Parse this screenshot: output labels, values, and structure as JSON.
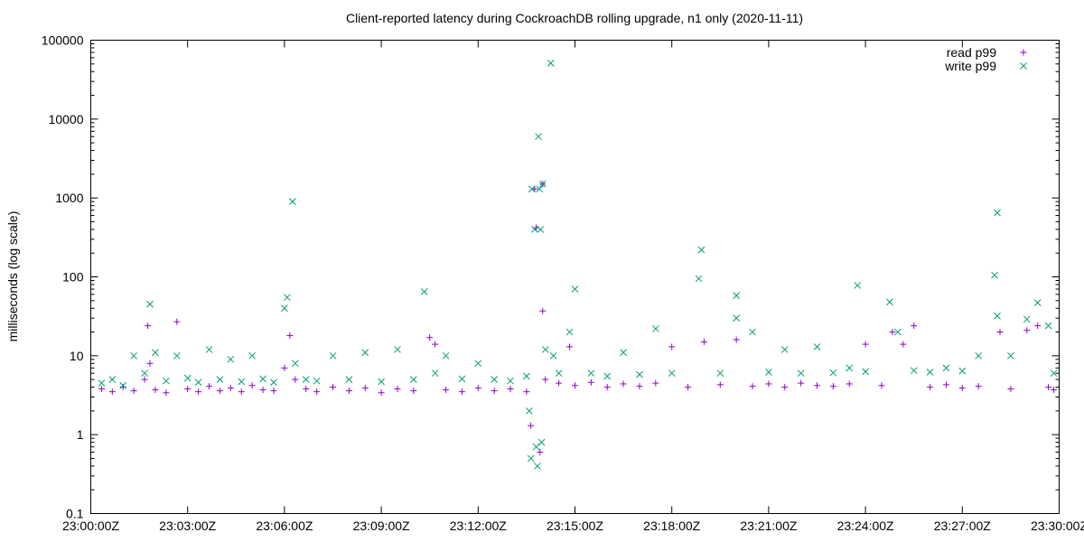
{
  "chart_data": {
    "type": "scatter",
    "title": "Client-reported latency during CockroachDB rolling upgrade, n1 only (2020-11-11)",
    "xlabel": "",
    "ylabel": "milliseconds (log scale)",
    "y_scale": "log",
    "ylim": [
      0.1,
      100000
    ],
    "xlim": [
      "23:00:00Z",
      "23:30:00Z"
    ],
    "x_unit": "time (UTC)",
    "grid": false,
    "legend_position": "top-right",
    "y_ticks": [
      "0.1",
      "1",
      "10",
      "100",
      "1000",
      "10000",
      "100000"
    ],
    "x_ticks": [
      "23:00:00Z",
      "23:03:00Z",
      "23:06:00Z",
      "23:09:00Z",
      "23:12:00Z",
      "23:15:00Z",
      "23:18:00Z",
      "23:21:00Z",
      "23:24:00Z",
      "23:27:00Z",
      "23:30:00Z"
    ],
    "series": [
      {
        "name": "read p99",
        "color": "#9400d3",
        "marker": "plus",
        "points": [
          [
            "23:00:20Z",
            3.8
          ],
          [
            "23:00:40Z",
            3.5
          ],
          [
            "23:01:00Z",
            4.0
          ],
          [
            "23:01:20Z",
            3.6
          ],
          [
            "23:01:40Z",
            5.0
          ],
          [
            "23:01:46Z",
            24
          ],
          [
            "23:01:50Z",
            8.0
          ],
          [
            "23:02:00Z",
            3.7
          ],
          [
            "23:02:20Z",
            3.4
          ],
          [
            "23:02:40Z",
            27
          ],
          [
            "23:03:00Z",
            3.8
          ],
          [
            "23:03:20Z",
            3.5
          ],
          [
            "23:03:40Z",
            4.1
          ],
          [
            "23:04:00Z",
            3.6
          ],
          [
            "23:04:20Z",
            3.9
          ],
          [
            "23:04:40Z",
            3.5
          ],
          [
            "23:05:00Z",
            4.2
          ],
          [
            "23:05:20Z",
            3.7
          ],
          [
            "23:05:40Z",
            3.6
          ],
          [
            "23:06:00Z",
            7.0
          ],
          [
            "23:06:10Z",
            18
          ],
          [
            "23:06:20Z",
            5.0
          ],
          [
            "23:06:40Z",
            3.8
          ],
          [
            "23:07:00Z",
            3.5
          ],
          [
            "23:07:30Z",
            4.0
          ],
          [
            "23:08:00Z",
            3.6
          ],
          [
            "23:08:30Z",
            3.9
          ],
          [
            "23:09:00Z",
            3.4
          ],
          [
            "23:09:30Z",
            3.8
          ],
          [
            "23:10:00Z",
            3.6
          ],
          [
            "23:10:30Z",
            17
          ],
          [
            "23:10:40Z",
            14
          ],
          [
            "23:11:00Z",
            3.7
          ],
          [
            "23:11:30Z",
            3.5
          ],
          [
            "23:12:00Z",
            3.9
          ],
          [
            "23:12:30Z",
            3.6
          ],
          [
            "23:13:00Z",
            3.8
          ],
          [
            "23:13:30Z",
            3.5
          ],
          [
            "23:13:38Z",
            1.3
          ],
          [
            "23:13:45Z",
            1300
          ],
          [
            "23:13:48Z",
            420
          ],
          [
            "23:13:55Z",
            0.6
          ],
          [
            "23:14:00Z",
            1500
          ],
          [
            "23:14:00Z",
            37
          ],
          [
            "23:14:05Z",
            5.0
          ],
          [
            "23:14:30Z",
            4.5
          ],
          [
            "23:14:50Z",
            13
          ],
          [
            "23:15:00Z",
            4.2
          ],
          [
            "23:15:30Z",
            4.6
          ],
          [
            "23:16:00Z",
            4.0
          ],
          [
            "23:16:30Z",
            4.4
          ],
          [
            "23:17:00Z",
            4.1
          ],
          [
            "23:17:30Z",
            4.5
          ],
          [
            "23:18:00Z",
            13
          ],
          [
            "23:18:30Z",
            4.0
          ],
          [
            "23:19:00Z",
            15
          ],
          [
            "23:19:30Z",
            4.3
          ],
          [
            "23:20:00Z",
            16
          ],
          [
            "23:20:30Z",
            4.1
          ],
          [
            "23:21:00Z",
            4.4
          ],
          [
            "23:21:30Z",
            4.0
          ],
          [
            "23:22:00Z",
            4.5
          ],
          [
            "23:22:30Z",
            4.2
          ],
          [
            "23:23:00Z",
            4.1
          ],
          [
            "23:23:30Z",
            4.4
          ],
          [
            "23:24:00Z",
            14
          ],
          [
            "23:24:30Z",
            4.2
          ],
          [
            "23:24:50Z",
            20
          ],
          [
            "23:25:10Z",
            14
          ],
          [
            "23:25:30Z",
            24
          ],
          [
            "23:26:00Z",
            4.0
          ],
          [
            "23:26:30Z",
            4.3
          ],
          [
            "23:27:00Z",
            3.9
          ],
          [
            "23:27:30Z",
            4.1
          ],
          [
            "23:28:10Z",
            20
          ],
          [
            "23:28:30Z",
            3.8
          ],
          [
            "23:29:00Z",
            21
          ],
          [
            "23:29:20Z",
            24
          ],
          [
            "23:29:40Z",
            4.0
          ],
          [
            "23:29:50Z",
            3.7
          ]
        ]
      },
      {
        "name": "write p99",
        "color": "#009e73",
        "marker": "cross",
        "points": [
          [
            "23:00:20Z",
            4.5
          ],
          [
            "23:00:40Z",
            5.0
          ],
          [
            "23:01:00Z",
            4.2
          ],
          [
            "23:01:20Z",
            10
          ],
          [
            "23:01:40Z",
            6.0
          ],
          [
            "23:01:50Z",
            45
          ],
          [
            "23:02:00Z",
            11
          ],
          [
            "23:02:20Z",
            4.8
          ],
          [
            "23:02:40Z",
            10
          ],
          [
            "23:03:00Z",
            5.2
          ],
          [
            "23:03:20Z",
            4.6
          ],
          [
            "23:03:40Z",
            12
          ],
          [
            "23:04:00Z",
            5.0
          ],
          [
            "23:04:20Z",
            9.0
          ],
          [
            "23:04:40Z",
            4.7
          ],
          [
            "23:05:00Z",
            10
          ],
          [
            "23:05:20Z",
            5.1
          ],
          [
            "23:05:40Z",
            4.6
          ],
          [
            "23:06:00Z",
            40
          ],
          [
            "23:06:05Z",
            55
          ],
          [
            "23:06:15Z",
            900
          ],
          [
            "23:06:20Z",
            8.0
          ],
          [
            "23:06:40Z",
            5.0
          ],
          [
            "23:07:00Z",
            4.8
          ],
          [
            "23:07:30Z",
            10
          ],
          [
            "23:08:00Z",
            5.0
          ],
          [
            "23:08:30Z",
            11
          ],
          [
            "23:09:00Z",
            4.7
          ],
          [
            "23:09:30Z",
            12
          ],
          [
            "23:10:00Z",
            5.0
          ],
          [
            "23:10:20Z",
            65
          ],
          [
            "23:10:40Z",
            6.0
          ],
          [
            "23:11:00Z",
            10
          ],
          [
            "23:11:30Z",
            5.1
          ],
          [
            "23:12:00Z",
            8.0
          ],
          [
            "23:12:30Z",
            5.0
          ],
          [
            "23:13:00Z",
            4.8
          ],
          [
            "23:13:30Z",
            5.5
          ],
          [
            "23:13:35Z",
            2.0
          ],
          [
            "23:13:38Z",
            0.5
          ],
          [
            "23:13:40Z",
            1300
          ],
          [
            "23:13:45Z",
            400
          ],
          [
            "23:13:48Z",
            0.7
          ],
          [
            "23:13:50Z",
            0.4
          ],
          [
            "23:13:52Z",
            6000
          ],
          [
            "23:13:54Z",
            1300
          ],
          [
            "23:13:56Z",
            400
          ],
          [
            "23:13:58Z",
            0.8
          ],
          [
            "23:14:00Z",
            1500
          ],
          [
            "23:14:05Z",
            12
          ],
          [
            "23:14:15Z",
            51000
          ],
          [
            "23:14:20Z",
            10
          ],
          [
            "23:14:30Z",
            6.0
          ],
          [
            "23:14:50Z",
            20
          ],
          [
            "23:15:00Z",
            70
          ],
          [
            "23:15:30Z",
            6.0
          ],
          [
            "23:16:00Z",
            5.5
          ],
          [
            "23:16:30Z",
            11
          ],
          [
            "23:17:00Z",
            5.8
          ],
          [
            "23:17:30Z",
            22
          ],
          [
            "23:18:00Z",
            6.0
          ],
          [
            "23:18:50Z",
            95
          ],
          [
            "23:18:55Z",
            220
          ],
          [
            "23:19:30Z",
            6.0
          ],
          [
            "23:20:00Z",
            58
          ],
          [
            "23:20:00Z",
            30
          ],
          [
            "23:20:30Z",
            20
          ],
          [
            "23:21:00Z",
            6.2
          ],
          [
            "23:21:30Z",
            12
          ],
          [
            "23:22:00Z",
            6.0
          ],
          [
            "23:22:30Z",
            13
          ],
          [
            "23:23:00Z",
            6.1
          ],
          [
            "23:23:30Z",
            7.0
          ],
          [
            "23:23:45Z",
            78
          ],
          [
            "23:24:00Z",
            6.3
          ],
          [
            "23:24:45Z",
            48
          ],
          [
            "23:25:00Z",
            20
          ],
          [
            "23:25:30Z",
            6.5
          ],
          [
            "23:26:00Z",
            6.2
          ],
          [
            "23:26:30Z",
            7.0
          ],
          [
            "23:27:00Z",
            6.4
          ],
          [
            "23:27:30Z",
            10
          ],
          [
            "23:28:00Z",
            105
          ],
          [
            "23:28:05Z",
            650
          ],
          [
            "23:28:05Z",
            32
          ],
          [
            "23:28:30Z",
            10
          ],
          [
            "23:29:00Z",
            29
          ],
          [
            "23:29:20Z",
            47
          ],
          [
            "23:29:40Z",
            24
          ],
          [
            "23:29:50Z",
            6.0
          ]
        ]
      }
    ]
  }
}
